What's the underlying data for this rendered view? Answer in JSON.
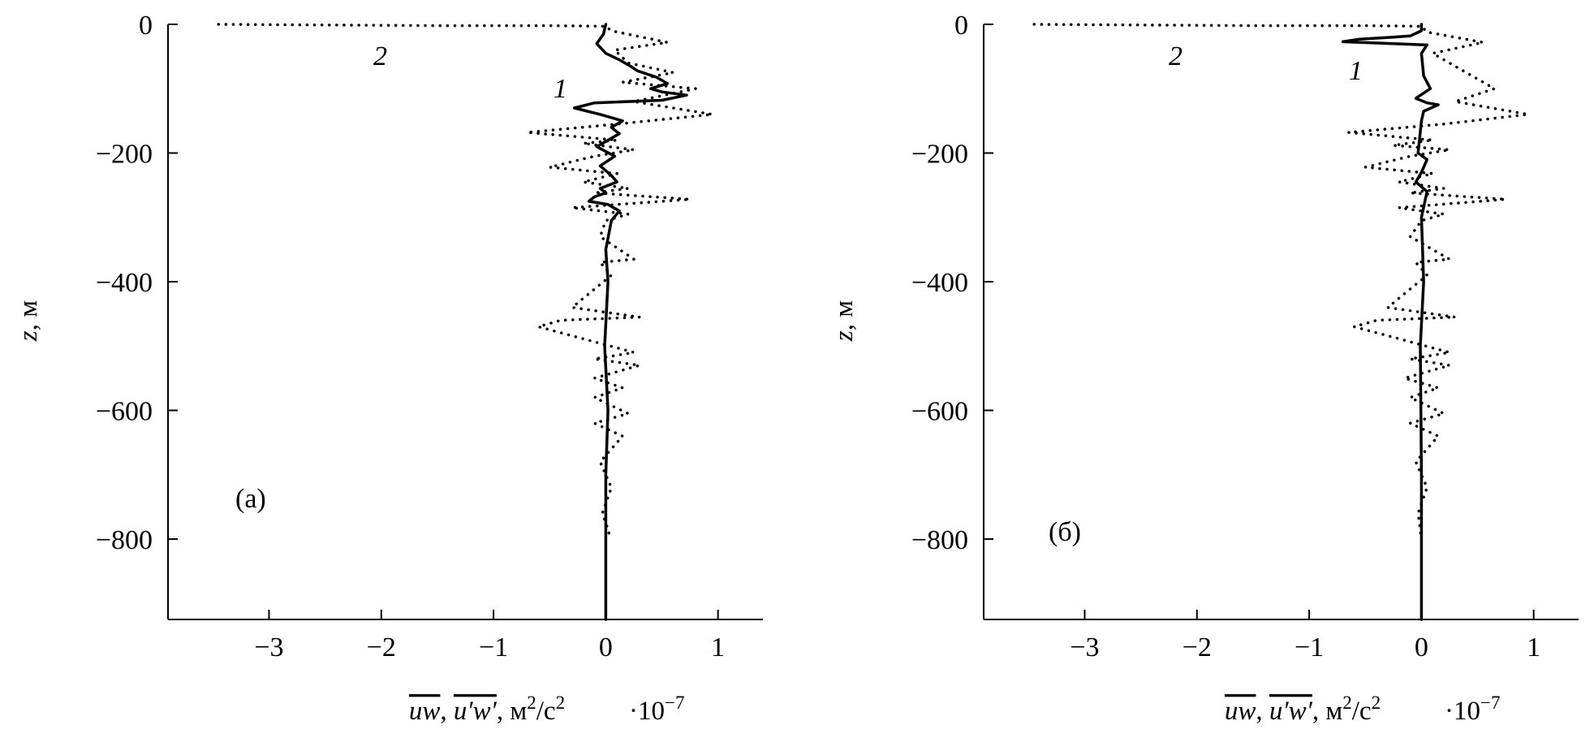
{
  "chart_data": [
    {
      "type": "line",
      "panel_label": "(а)",
      "ylabel": "z, м",
      "xlabel_parts": [
        "uw",
        ", ",
        "u′w′",
        ", м",
        "2",
        "/с",
        "2"
      ],
      "xscale_parts": [
        "·10",
        "−7"
      ],
      "xlim": [
        -3.9,
        1.4
      ],
      "ylim": [
        -925,
        0
      ],
      "xticks": [
        -3,
        -2,
        -1,
        0,
        1
      ],
      "xtick_labels": [
        "−3",
        "−2",
        "−1",
        "0",
        "1"
      ],
      "yticks": [
        0,
        -200,
        -400,
        -600,
        -800
      ],
      "ytick_labels": [
        "0",
        "−200",
        "−400",
        "−600",
        "−800"
      ],
      "grid": false,
      "series": [
        {
          "name": "1",
          "style": "solid",
          "color": "#000000",
          "x": [
            0,
            -0.02,
            -0.08,
            0.0,
            0.12,
            0.22,
            0.28,
            0.45,
            0.55,
            0.4,
            0.5,
            0.72,
            0.5,
            -0.1,
            -0.28,
            -0.05,
            0.15,
            0.05,
            0.12,
            -0.08,
            0.08,
            -0.05,
            0.05,
            0.1,
            -0.05,
            0.0,
            -0.1,
            -0.15,
            0.02,
            0.12,
            0.05,
            0.0,
            0.02,
            -0.01,
            0.02,
            0.0,
            0.0,
            0.0
          ],
          "y": [
            0,
            -15,
            -30,
            -45,
            -55,
            -65,
            -72,
            -82,
            -92,
            -100,
            -105,
            -110,
            -118,
            -122,
            -130,
            -140,
            -150,
            -160,
            -170,
            -190,
            -205,
            -220,
            -235,
            -245,
            -255,
            -262,
            -268,
            -275,
            -280,
            -290,
            -305,
            -350,
            -400,
            -500,
            -600,
            -700,
            -800,
            -925
          ]
        },
        {
          "name": "2",
          "style": "dotted",
          "color": "#000000",
          "x": [
            -3.45,
            -2.5,
            -1.5,
            -0.5,
            0.0,
            0.05,
            0.55,
            0.08,
            0.2,
            0.6,
            0.15,
            0.8,
            0.25,
            0.95,
            0.1,
            -0.7,
            0.1,
            -0.2,
            0.25,
            -0.1,
            -0.5,
            0.1,
            -0.2,
            0.2,
            -0.1,
            0.75,
            -0.3,
            0.2,
            0.0,
            -0.05,
            0.25,
            -0.05,
            0.05,
            -0.3,
            0.3,
            -0.4,
            -0.6,
            0.25,
            -0.1,
            0.3,
            -0.1,
            0.15,
            -0.1,
            0.2,
            -0.1,
            0.15,
            -0.05,
            0.05,
            -0.03,
            0.03,
            0.0
          ],
          "y": [
            0,
            -1,
            -2,
            -2,
            -3,
            -10,
            -28,
            -40,
            -60,
            -75,
            -90,
            -100,
            -120,
            -140,
            -155,
            -168,
            -180,
            -185,
            -195,
            -205,
            -222,
            -232,
            -245,
            -255,
            -262,
            -272,
            -285,
            -295,
            -305,
            -330,
            -365,
            -370,
            -390,
            -440,
            -455,
            -460,
            -470,
            -510,
            -520,
            -530,
            -550,
            -565,
            -580,
            -605,
            -620,
            -640,
            -680,
            -720,
            -760,
            -790,
            -800
          ]
        }
      ]
    },
    {
      "type": "line",
      "panel_label": "(б)",
      "ylabel": "z, м",
      "xlabel_parts": [
        "uw",
        ", ",
        "u′w′",
        ", м",
        "2",
        "/с",
        "2"
      ],
      "xscale_parts": [
        "·10",
        "−7"
      ],
      "xlim": [
        -3.9,
        1.4
      ],
      "ylim": [
        -925,
        0
      ],
      "xticks": [
        -3,
        -2,
        -1,
        0,
        1
      ],
      "xtick_labels": [
        "−3",
        "−2",
        "−1",
        "0",
        "1"
      ],
      "yticks": [
        0,
        -200,
        -400,
        -600,
        -800
      ],
      "ytick_labels": [
        "0",
        "−200",
        "−400",
        "−600",
        "−800"
      ],
      "grid": false,
      "series": [
        {
          "name": "1",
          "style": "solid",
          "color": "#000000",
          "x": [
            0,
            0.0,
            -0.1,
            -0.25,
            -0.55,
            -0.7,
            0.05,
            0.0,
            0.02,
            0.08,
            -0.05,
            0.05,
            0.15,
            0.02,
            0.0,
            -0.03,
            0.05,
            0.0,
            -0.05,
            0.05,
            0.0,
            0.02,
            -0.01,
            0.0,
            0.0
          ],
          "y": [
            0,
            -10,
            -18,
            -20,
            -23,
            -27,
            -32,
            -45,
            -80,
            -100,
            -115,
            -122,
            -125,
            -135,
            -150,
            -200,
            -210,
            -230,
            -245,
            -260,
            -300,
            -400,
            -500,
            -700,
            -925
          ]
        },
        {
          "name": "2",
          "style": "dotted",
          "color": "#000000",
          "x": [
            -3.45,
            -2.5,
            -1.5,
            -0.5,
            0.0,
            0.05,
            0.55,
            0.1,
            0.35,
            0.65,
            0.3,
            0.95,
            0.2,
            -0.65,
            0.1,
            -0.25,
            0.25,
            -0.1,
            -0.5,
            0.1,
            -0.2,
            0.2,
            -0.1,
            0.75,
            -0.2,
            0.2,
            0.0,
            -0.1,
            0.25,
            -0.05,
            0.05,
            -0.3,
            0.3,
            -0.4,
            -0.6,
            0.25,
            -0.1,
            0.25,
            -0.15,
            0.15,
            -0.1,
            0.2,
            -0.1,
            0.15,
            -0.05,
            0.05,
            -0.03,
            0.0
          ],
          "y": [
            0,
            -1,
            -2,
            -2,
            -3,
            -12,
            -28,
            -45,
            -70,
            -100,
            -120,
            -140,
            -155,
            -168,
            -180,
            -188,
            -195,
            -205,
            -222,
            -232,
            -245,
            -255,
            -262,
            -272,
            -285,
            -295,
            -305,
            -330,
            -365,
            -370,
            -390,
            -440,
            -455,
            -460,
            -470,
            -510,
            -520,
            -530,
            -550,
            -565,
            -580,
            -605,
            -620,
            -640,
            -680,
            -720,
            -760,
            -800
          ]
        }
      ]
    }
  ]
}
